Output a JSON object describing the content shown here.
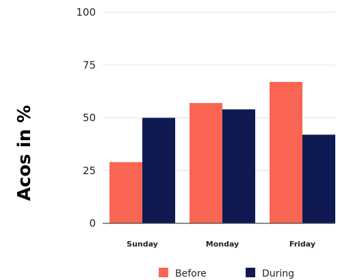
{
  "chart_data": {
    "type": "bar",
    "ylabel": "Acos in %",
    "xlabel": "",
    "ylim": [
      0,
      100
    ],
    "yticks": [
      0,
      25,
      50,
      75,
      100
    ],
    "grid": true,
    "legend_position": "bottom",
    "categories": [
      "Sunday",
      "Monday",
      "Friday"
    ],
    "series": [
      {
        "name": "Before",
        "color": "#fa6554",
        "values": [
          29,
          57,
          67
        ]
      },
      {
        "name": "During",
        "color": "#0f1a52",
        "values": [
          50,
          54,
          42
        ]
      }
    ]
  }
}
